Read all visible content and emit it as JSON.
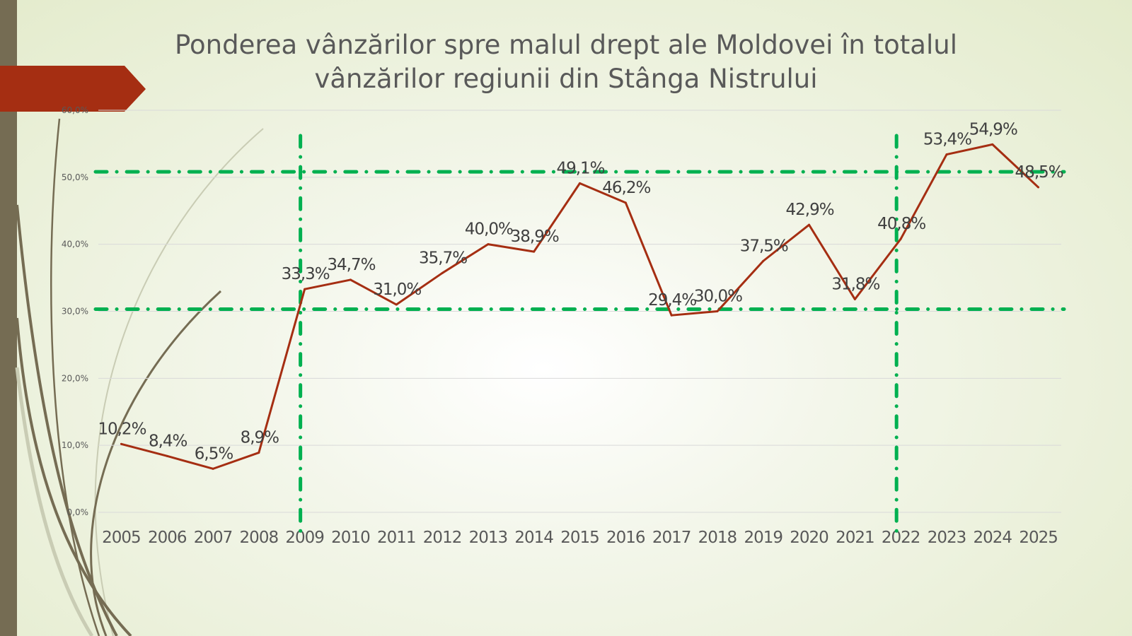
{
  "title": "Ponderea vânzărilor spre malul drept ale Moldovei în totalul vânzărilor regiunii din Stânga Nistrului",
  "colors": {
    "line": "#a52e12",
    "reference_lines": "#00b050",
    "accent_arrow": "#a52e12",
    "sidebar": "#756c53"
  },
  "chart_data": {
    "type": "line",
    "title": "Ponderea vânzărilor spre malul drept ale Moldovei în totalul vânzărilor regiunii din Stânga Nistrului",
    "categories": [
      "2005",
      "2006",
      "2007",
      "2008",
      "2009",
      "2010",
      "2011",
      "2012",
      "2013",
      "2014",
      "2015",
      "2016",
      "2017",
      "2018",
      "2019",
      "2020",
      "2021",
      "2022",
      "2023",
      "2024",
      "2025"
    ],
    "values": [
      10.2,
      8.4,
      6.5,
      8.9,
      33.3,
      34.7,
      31.0,
      35.7,
      40.0,
      38.9,
      49.1,
      46.2,
      29.4,
      30.0,
      37.5,
      42.9,
      31.8,
      40.8,
      53.4,
      54.9,
      48.5
    ],
    "data_labels": [
      "10,2%",
      "8,4%",
      "6,5%",
      "8,9%",
      "33,3%",
      "34,7%",
      "31,0%",
      "35,7%",
      "40,0%",
      "38,9%",
      "49,1%",
      "46,2%",
      "29,4%",
      "30,0%",
      "37,5%",
      "42,9%",
      "31,8%",
      "40,8%",
      "53,4%",
      "54,9%",
      "48,5%"
    ],
    "ylim": [
      0,
      60
    ],
    "y_ticks": [
      "0,0%",
      "10,0%",
      "20,0%",
      "30,0%",
      "40,0%",
      "50,0%",
      "60,0%"
    ],
    "grid": true,
    "legend": "none",
    "reference_lines": {
      "horizontal": [
        30,
        50.5
      ],
      "vertical": [
        "2009",
        "2022"
      ],
      "style": "dash-dot"
    }
  }
}
